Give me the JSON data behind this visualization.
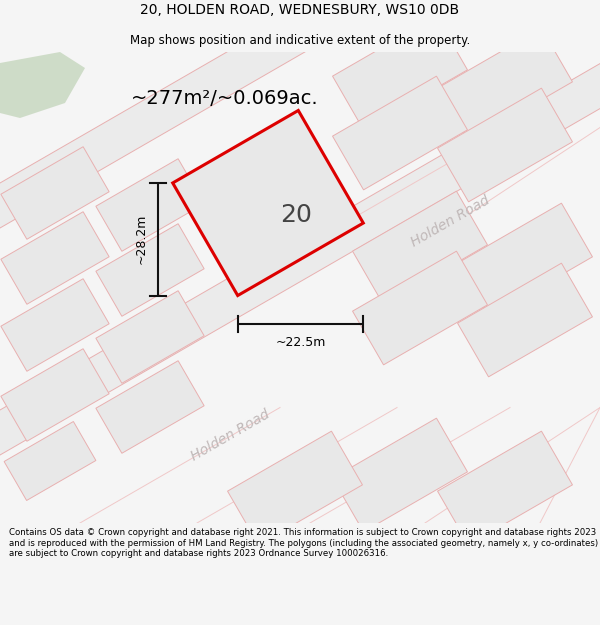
{
  "title_line1": "20, HOLDEN ROAD, WEDNESBURY, WS10 0DB",
  "title_line2": "Map shows position and indicative extent of the property.",
  "area_text": "~277m²/~0.069ac.",
  "number_label": "20",
  "dim_height": "~28.2m",
  "dim_width": "~22.5m",
  "road_label_upper": "Holden Road",
  "road_label_lower": "Holden Road",
  "footer_text": "Contains OS data © Crown copyright and database right 2021. This information is subject to Crown copyright and database rights 2023 and is reproduced with the permission of HM Land Registry. The polygons (including the associated geometry, namely x, y co-ordinates) are subject to Crown copyright and database rights 2023 Ordnance Survey 100026316.",
  "bg_color": "#f5f5f5",
  "map_bg": "#ffffff",
  "plot_fill": "#e8e8e8",
  "plot_fill_dark": "#dedede",
  "red_color": "#dd0000",
  "pink_edge": "#e8b0b0",
  "pink_edge2": "#f0c8c8",
  "dim_line_color": "#111111",
  "road_text_color": "#c0b8b8",
  "green_fill": "#c8d8c0",
  "title_fontsize": 10,
  "subtitle_fontsize": 8.5,
  "area_fontsize": 14,
  "label_fontsize": 18,
  "dim_fontsize": 9,
  "road_fontsize": 10,
  "footer_fontsize": 6.2
}
